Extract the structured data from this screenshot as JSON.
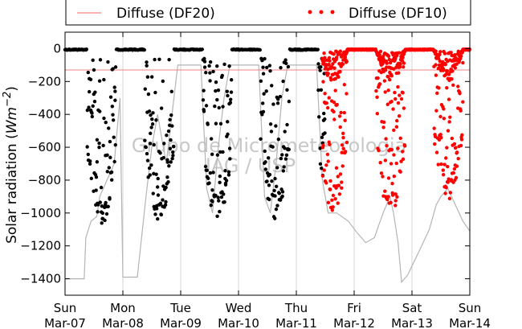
{
  "chart_data": {
    "type": "scatter",
    "title": "",
    "ylabel": "Solar radiation (Wm-2)",
    "ylabel_prefix": "Solar radiation (",
    "ylabel_unit": "Wm",
    "ylabel_exp": "−2",
    "ylabel_suffix": ")",
    "xlabel": "",
    "x_range": [
      "2010-03-07",
      "2010-03-14"
    ],
    "ylim": [
      -1500,
      100
    ],
    "yticks": [
      0,
      -200,
      -400,
      -600,
      -800,
      -1000,
      -1200,
      -1400
    ],
    "xtick_days": [
      "Sun",
      "Mon",
      "Tue",
      "Wed",
      "Thu",
      "Fri",
      "Sat",
      "Sun"
    ],
    "xtick_dates": [
      "Mar-07",
      "Mar-08",
      "Mar-09",
      "Mar-10",
      "Mar-11",
      "Mar-12",
      "Mar-13",
      "Mar-14"
    ],
    "grid": "vertical",
    "legend": {
      "placement": "top",
      "entries": [
        {
          "label": "Diffuse (DF20)",
          "style": "line",
          "color": "#f08080"
        },
        {
          "label": "Diffuse (DF10)",
          "style": "dots",
          "color": "#ff0000"
        }
      ]
    },
    "annotation": {
      "watermark_line1": "Grupo de Micrometeorologia",
      "watermark_line2": "IAG / USP"
    },
    "series": [
      {
        "name": "Diffuse (DF20)",
        "style": "horizontal-line",
        "color": "#f08080",
        "value": -130
      },
      {
        "name": "Diffuse (DF10)",
        "style": "dots",
        "color": "#ff0000",
        "x_start_days": 4.45,
        "x_end_days": 7.0,
        "min_by_day": [
          -1020,
          -1020,
          -920
        ]
      },
      {
        "style": "dots",
        "color": "#000000",
        "x_start_days": 0.0,
        "x_end_days": 4.5,
        "min_by_day": [
          -1080,
          -1050,
          -1060,
          -1040,
          -1030
        ]
      },
      {
        "style": "line",
        "color": "#b4b4b4",
        "points": [
          [
            0.0,
            -1400
          ],
          [
            0.33,
            -1400
          ],
          [
            0.36,
            -1150
          ],
          [
            0.45,
            -1050
          ],
          [
            0.55,
            -1020
          ],
          [
            0.6,
            -900
          ],
          [
            0.85,
            -700
          ],
          [
            0.95,
            -300
          ],
          [
            1.0,
            -1390
          ],
          [
            1.2,
            -1390
          ],
          [
            1.25,
            -1390
          ],
          [
            1.4,
            -900
          ],
          [
            1.5,
            -600
          ],
          [
            1.6,
            -400
          ],
          [
            1.75,
            -700
          ],
          [
            1.85,
            -400
          ],
          [
            1.95,
            -100
          ],
          [
            2.35,
            -100
          ],
          [
            2.45,
            -850
          ],
          [
            2.55,
            -1000
          ],
          [
            2.65,
            -600
          ],
          [
            2.75,
            -300
          ],
          [
            2.85,
            -100
          ],
          [
            3.35,
            -100
          ],
          [
            3.45,
            -900
          ],
          [
            3.55,
            -1000
          ],
          [
            3.65,
            -700
          ],
          [
            3.75,
            -300
          ],
          [
            3.85,
            -100
          ],
          [
            4.35,
            -100
          ],
          [
            4.45,
            -800
          ],
          [
            4.55,
            -1000
          ],
          [
            4.7,
            -1000
          ],
          [
            4.9,
            -1050
          ],
          [
            5.05,
            -1120
          ],
          [
            5.2,
            -1180
          ],
          [
            5.35,
            -1150
          ],
          [
            5.5,
            -1000
          ],
          [
            5.62,
            -900
          ],
          [
            5.68,
            -1000
          ],
          [
            5.76,
            -1180
          ],
          [
            5.82,
            -1420
          ],
          [
            5.92,
            -1380
          ],
          [
            6.1,
            -1250
          ],
          [
            6.3,
            -1100
          ],
          [
            6.42,
            -950
          ],
          [
            6.5,
            -900
          ],
          [
            6.62,
            -850
          ],
          [
            6.75,
            -950
          ],
          [
            6.88,
            -1050
          ],
          [
            7.0,
            -1110
          ]
        ]
      }
    ]
  }
}
